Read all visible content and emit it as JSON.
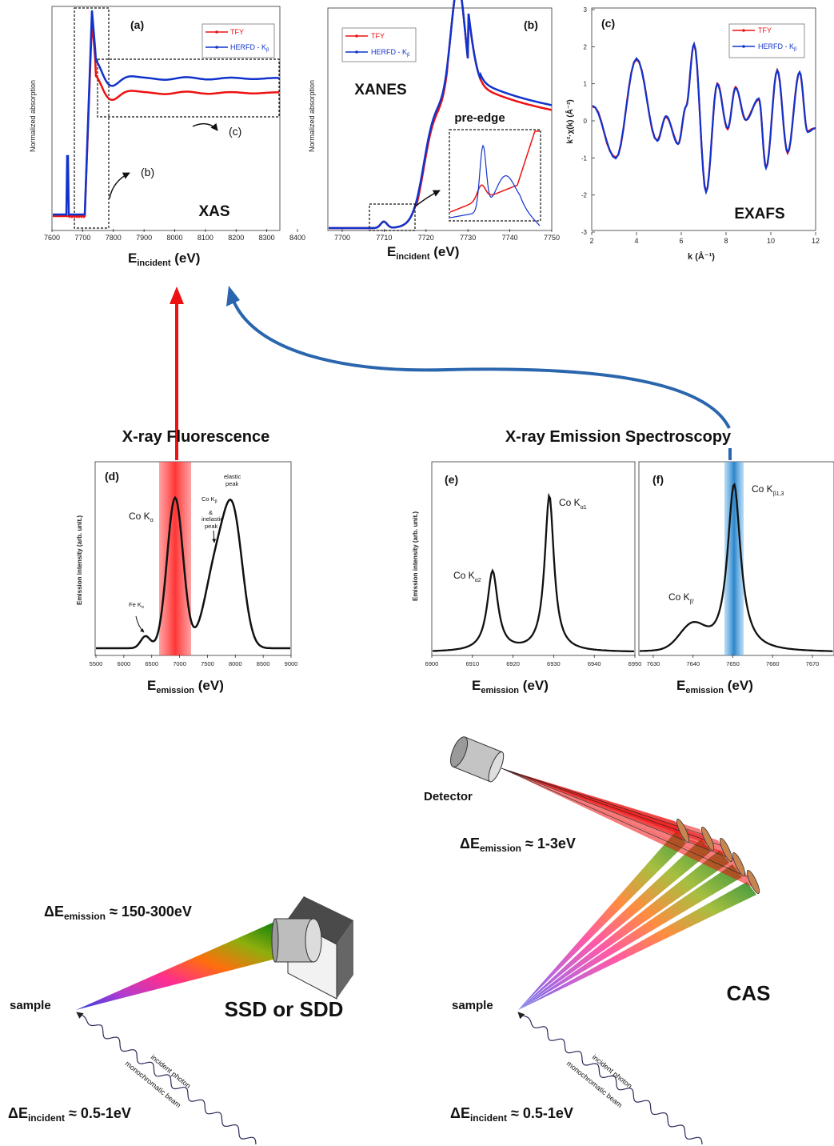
{
  "colors": {
    "tfy": "#ee1111",
    "herfd": "#1133cc",
    "black": "#111111",
    "red_band": "#ff3333",
    "blue_band": "#2288cc"
  },
  "panel_a": {
    "tag": "(a)",
    "ylabel": "Normalized absorption",
    "legend": [
      "TFY",
      "HERFD - K",
      "β"
    ],
    "xticks": [
      "7600",
      "7700",
      "7800",
      "7900",
      "8000",
      "8100",
      "8200",
      "8300",
      "8400"
    ],
    "xlabel_main": "E",
    "xlabel_sub": "incident",
    "xlabel_unit": " (eV)",
    "region_b": "(b)",
    "region_c": "(c)",
    "title": "XAS"
  },
  "panel_b": {
    "tag": "(b)",
    "ylabel": "Normalized absorption",
    "legend": [
      "TFY",
      "HERFD - K",
      "β"
    ],
    "xticks": [
      "7700",
      "7710",
      "7720",
      "7730",
      "7740",
      "7750"
    ],
    "xlabel_main": "E",
    "xlabel_sub": "incident",
    "xlabel_unit": " (eV)",
    "title": "XANES",
    "inset_label": "pre-edge"
  },
  "panel_c": {
    "tag": "(c)",
    "legend": [
      "TFY",
      "HERFD - K",
      "β"
    ],
    "yticks": [
      "3",
      "2",
      "1",
      "0",
      "-1",
      "-2",
      "-3"
    ],
    "xticks": [
      "2",
      "4",
      "6",
      "8",
      "10",
      "12"
    ],
    "ylabel": "k²·χ(k) (Å⁻²)",
    "xlabel": "k (Å⁻¹)",
    "title": "EXAFS"
  },
  "headings": {
    "fluorescence": "X-ray Fluorescence",
    "emission": "X-ray Emission Spectroscopy"
  },
  "panel_d": {
    "tag": "(d)",
    "ylabel": "Emission intensity (arb. unit.)",
    "xticks": [
      "5500",
      "6000",
      "6500",
      "7000",
      "7500",
      "8000",
      "8500",
      "9000"
    ],
    "xlabel_main": "E",
    "xlabel_sub": "emission",
    "xlabel_unit": " (eV)",
    "ka_main": "Co K",
    "ka_sub": "α",
    "kb_main": "Co K",
    "kb_sub": "β",
    "kb_amp": "&",
    "kb_l1": "inelastic",
    "kb_l2": "peak",
    "elastic_l1": "elastic",
    "elastic_l2": "peak",
    "fe_main": "Fe K",
    "fe_sub": "α"
  },
  "panel_e": {
    "tag": "(e)",
    "ylabel": "Emission intensity (arb. unit.)",
    "xticks": [
      "6900",
      "6910",
      "6920",
      "6930",
      "6940",
      "6950"
    ],
    "xlabel_main": "E",
    "xlabel_sub": "emission",
    "xlabel_unit": " (eV)",
    "ka1_main": "Co K",
    "ka1_sub": "α1",
    "ka2_main": "Co K",
    "ka2_sub": "α2"
  },
  "panel_f": {
    "tag": "(f)",
    "xticks": [
      "7630",
      "7640",
      "7650",
      "7660",
      "7670"
    ],
    "xlabel_main": "E",
    "xlabel_sub": "emission",
    "xlabel_unit": " (eV)",
    "kb13_main": "Co K",
    "kb13_sub": "β1,3",
    "kbp_main": "Co K",
    "kbp_sub": "β'"
  },
  "setup_left": {
    "demission_pre": "ΔE",
    "demission_sub": "emission",
    "demission_val": "  ≈ 150-300eV",
    "sample": "sample",
    "beam_l1": "incident photon",
    "beam_l2": "monochromatic beam",
    "dincident_pre": "ΔE",
    "dincident_sub": "incident",
    "dincident_val": " ≈ 0.5-1eV",
    "detector": "SSD or SDD"
  },
  "setup_right": {
    "detector_label": "Detector",
    "demission_pre": "ΔE",
    "demission_sub": "emission",
    "demission_val": " ≈ 1-3eV",
    "sample": "sample",
    "beam_l1": "incident photon",
    "beam_l2": "monochromatic beam",
    "dincident_pre": "ΔE",
    "dincident_sub": "incident",
    "dincident_val": " ≈ 0.5-1eV",
    "analyzer": "CAS"
  }
}
